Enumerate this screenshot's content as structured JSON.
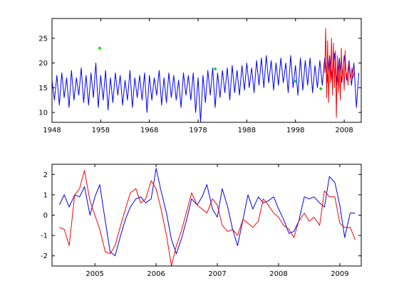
{
  "chart_data": [
    {
      "type": "line",
      "panel": "top",
      "title": "",
      "xlabel": "",
      "ylabel": "",
      "xlim": [
        1948,
        2011.5
      ],
      "ylim": [
        8,
        29
      ],
      "x_ticks": [
        "1948",
        "1958",
        "1968",
        "1978",
        "1988",
        "1998",
        "2008"
      ],
      "y_ticks": [
        "10",
        "15",
        "20",
        "25"
      ],
      "grid": false,
      "legend": "none",
      "series": [
        {
          "style": "line",
          "color": "#0000ff",
          "description": "monthly values 1948-2011, mean ~15 rising to ~18",
          "x": [
            1948.0,
            1948.5,
            1949.0,
            1949.5,
            1950.0,
            1950.5,
            1951.0,
            1951.5,
            1952.0,
            1952.5,
            1953.0,
            1953.5,
            1954.0,
            1954.5,
            1955.0,
            1955.5,
            1956.0,
            1956.5,
            1957.0,
            1957.5,
            1958.0,
            1958.5,
            1959.0,
            1959.5,
            1960.0,
            1960.5,
            1961.0,
            1961.5,
            1962.0,
            1962.5,
            1963.0,
            1963.5,
            1964.0,
            1964.5,
            1965.0,
            1965.5,
            1966.0,
            1966.5,
            1967.0,
            1967.5,
            1968.0,
            1968.5,
            1969.0,
            1969.5,
            1970.0,
            1970.5,
            1971.0,
            1971.5,
            1972.0,
            1972.5,
            1973.0,
            1973.5,
            1974.0,
            1974.5,
            1975.0,
            1975.5,
            1976.0,
            1976.5,
            1977.0,
            1977.5,
            1978.0,
            1978.5,
            1979.0,
            1979.5,
            1980.0,
            1980.5,
            1981.0,
            1981.5,
            1982.0,
            1982.5,
            1983.0,
            1983.5,
            1984.0,
            1984.5,
            1985.0,
            1985.5,
            1986.0,
            1986.5,
            1987.0,
            1987.5,
            1988.0,
            1988.5,
            1989.0,
            1989.5,
            1990.0,
            1990.5,
            1991.0,
            1991.5,
            1992.0,
            1992.5,
            1993.0,
            1993.5,
            1994.0,
            1994.5,
            1995.0,
            1995.5,
            1996.0,
            1996.5,
            1997.0,
            1997.5,
            1998.0,
            1998.5,
            1999.0,
            1999.5,
            2000.0,
            2000.5,
            2001.0,
            2001.5,
            2002.0,
            2002.5,
            2003.0,
            2003.5,
            2004.0,
            2004.5,
            2005.0,
            2005.5,
            2006.0,
            2006.5,
            2007.0,
            2007.5,
            2008.0,
            2008.5,
            2009.0,
            2009.5,
            2010.0,
            2010.5,
            2011.0
          ],
          "y": [
            16.5,
            12.5,
            17.5,
            11.5,
            18.0,
            13.0,
            17.0,
            11.0,
            18.5,
            12.5,
            17.0,
            13.5,
            19.0,
            12.0,
            17.5,
            11.5,
            18.0,
            13.0,
            20.0,
            11.0,
            17.5,
            12.5,
            18.5,
            10.5,
            17.0,
            12.0,
            18.0,
            13.5,
            17.5,
            11.5,
            16.5,
            12.5,
            18.5,
            11.0,
            17.0,
            13.0,
            17.5,
            12.5,
            18.0,
            10.0,
            17.5,
            12.5,
            17.0,
            13.5,
            18.5,
            11.5,
            17.0,
            12.0,
            18.0,
            13.0,
            17.5,
            12.5,
            16.5,
            11.0,
            18.0,
            13.5,
            17.5,
            12.5,
            18.0,
            10.0,
            17.0,
            8.0,
            17.5,
            12.0,
            18.5,
            13.5,
            19.0,
            11.0,
            18.0,
            13.0,
            18.5,
            14.0,
            19.0,
            12.5,
            19.5,
            14.0,
            18.5,
            13.5,
            19.5,
            14.5,
            20.0,
            15.0,
            19.0,
            14.0,
            20.5,
            15.5,
            21.0,
            15.0,
            21.5,
            16.0,
            20.5,
            14.5,
            20.0,
            15.5,
            21.0,
            16.0,
            20.0,
            14.0,
            21.5,
            15.0,
            19.5,
            13.5,
            21.0,
            14.5,
            20.5,
            15.5,
            21.0,
            14.0,
            19.5,
            15.0,
            20.5,
            15.5,
            21.0,
            16.0,
            21.5,
            16.5,
            22.0,
            15.5,
            21.0,
            16.0,
            21.5,
            16.5,
            20.5,
            15.5,
            20.0,
            11.0,
            18.0
          ]
        },
        {
          "style": "markers",
          "color": "#00dd00",
          "x": [
            1957.8,
            1981.5,
            1998.0,
            2003.2
          ],
          "y": [
            23.0,
            18.8,
            16.3,
            14.8
          ]
        },
        {
          "style": "line",
          "color": "#ff0000",
          "description": "high-variance segment 2004-2010",
          "x": [
            2004.0,
            2004.2,
            2004.4,
            2004.6,
            2004.8,
            2005.0,
            2005.2,
            2005.4,
            2005.6,
            2005.8,
            2006.0,
            2006.2,
            2006.4,
            2006.6,
            2006.8,
            2007.0,
            2007.2,
            2007.4,
            2007.6,
            2007.8,
            2008.0,
            2008.2,
            2008.4,
            2008.6,
            2008.8,
            2009.0,
            2009.2,
            2009.4,
            2009.6,
            2009.8,
            2010.0
          ],
          "y": [
            18.0,
            27.0,
            13.0,
            24.5,
            12.0,
            21.0,
            16.0,
            25.0,
            13.5,
            24.0,
            15.0,
            22.5,
            9.0,
            21.5,
            14.0,
            20.0,
            12.5,
            23.0,
            16.5,
            19.5,
            14.5,
            22.5,
            17.0,
            18.0,
            15.5,
            20.0,
            17.5,
            16.5,
            19.0,
            17.0,
            18.0
          ]
        }
      ]
    },
    {
      "type": "line",
      "panel": "bottom",
      "title": "",
      "xlabel": "",
      "ylabel": "",
      "xlim": [
        2004.3,
        2009.35
      ],
      "ylim": [
        -2.5,
        2.5
      ],
      "x_ticks": [
        "2005",
        "2006",
        "2007",
        "2008",
        "2009"
      ],
      "y_ticks": [
        "-2",
        "-1",
        "0",
        "1",
        "2"
      ],
      "grid": false,
      "legend": "none",
      "series": [
        {
          "color": "#0000ff",
          "x": [
            2004.42,
            2004.5,
            2004.58,
            2004.67,
            2004.75,
            2004.83,
            2004.92,
            2005.0,
            2005.08,
            2005.17,
            2005.25,
            2005.33,
            2005.42,
            2005.5,
            2005.58,
            2005.67,
            2005.75,
            2005.83,
            2005.92,
            2006.0,
            2006.08,
            2006.17,
            2006.25,
            2006.33,
            2006.42,
            2006.5,
            2006.58,
            2006.67,
            2006.75,
            2006.83,
            2006.92,
            2007.0,
            2007.08,
            2007.17,
            2007.25,
            2007.33,
            2007.42,
            2007.5,
            2007.58,
            2007.67,
            2007.75,
            2007.83,
            2007.92,
            2008.0,
            2008.08,
            2008.17,
            2008.25,
            2008.33,
            2008.42,
            2008.5,
            2008.58,
            2008.67,
            2008.75,
            2008.83,
            2008.92,
            2009.0,
            2009.08,
            2009.17,
            2009.25
          ],
          "y": [
            0.5,
            1.0,
            0.4,
            1.0,
            0.9,
            1.4,
            0.0,
            0.9,
            1.5,
            -0.3,
            -1.8,
            -2.0,
            -1.0,
            -0.2,
            0.4,
            0.8,
            0.9,
            0.6,
            0.8,
            2.3,
            1.2,
            0.1,
            -1.2,
            -1.9,
            -1.1,
            -0.2,
            0.8,
            0.5,
            0.9,
            1.5,
            0.3,
            -0.1,
            1.3,
            0.4,
            -0.7,
            -1.5,
            -0.2,
            1.0,
            0.3,
            0.9,
            0.6,
            0.7,
            0.9,
            0.3,
            -0.2,
            -0.9,
            -0.8,
            -0.3,
            0.9,
            0.8,
            0.9,
            0.6,
            0.4,
            1.9,
            1.6,
            0.5,
            -1.1,
            0.1,
            0.1
          ]
        },
        {
          "color": "#ff0000",
          "x": [
            2004.42,
            2004.5,
            2004.58,
            2004.67,
            2004.75,
            2004.83,
            2004.92,
            2005.0,
            2005.08,
            2005.17,
            2005.25,
            2005.33,
            2005.42,
            2005.5,
            2005.58,
            2005.67,
            2005.75,
            2005.83,
            2005.92,
            2006.0,
            2006.08,
            2006.17,
            2006.25,
            2006.33,
            2006.42,
            2006.5,
            2006.58,
            2006.67,
            2006.75,
            2006.83,
            2006.92,
            2007.0,
            2007.08,
            2007.17,
            2007.25,
            2007.33,
            2007.42,
            2007.5,
            2007.58,
            2007.67,
            2007.75,
            2007.83,
            2007.92,
            2008.0,
            2008.08,
            2008.17,
            2008.25,
            2008.33,
            2008.42,
            2008.5,
            2008.58,
            2008.67,
            2008.75,
            2008.83,
            2008.92,
            2009.0,
            2009.08,
            2009.17,
            2009.25
          ],
          "y": [
            -0.6,
            -0.7,
            -1.5,
            1.0,
            1.3,
            2.2,
            0.7,
            0.0,
            -0.7,
            -1.8,
            -1.9,
            -1.5,
            -0.5,
            0.3,
            1.1,
            1.3,
            0.6,
            0.8,
            1.7,
            1.3,
            0.3,
            -1.0,
            -2.5,
            -1.5,
            -0.7,
            0.2,
            1.1,
            0.5,
            0.3,
            0.1,
            0.8,
            0.5,
            -0.5,
            -0.8,
            -0.7,
            -1.0,
            -0.2,
            -0.4,
            -0.6,
            -0.3,
            0.8,
            0.5,
            0.1,
            -0.1,
            -0.5,
            -0.7,
            -1.1,
            -0.3,
            0.1,
            -0.3,
            -0.1,
            -0.5,
            1.2,
            0.9,
            0.9,
            -0.4,
            -0.6,
            -0.6,
            -1.2
          ]
        }
      ]
    }
  ]
}
